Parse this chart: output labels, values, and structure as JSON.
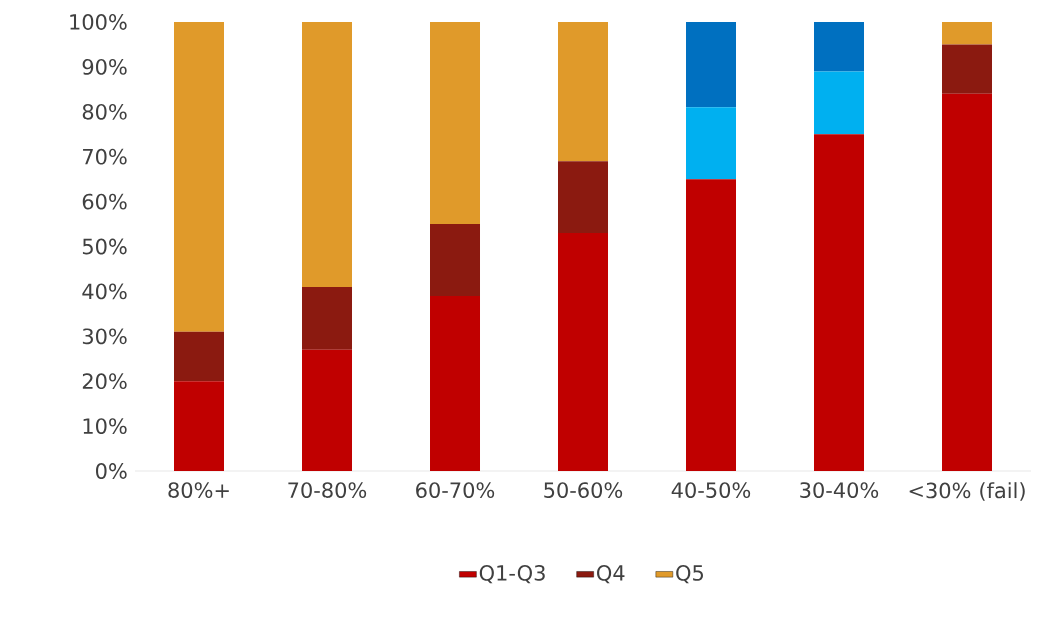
{
  "chart_data": {
    "type": "bar",
    "stacked": true,
    "categories": [
      "80%+",
      "70-80%",
      "60-70%",
      "50-60%",
      "40-50%",
      "30-40%",
      "<30% (fail)"
    ],
    "series": [
      {
        "name": "Q1-Q3",
        "color": "#c00000",
        "values": [
          20,
          27,
          39,
          53,
          65,
          75,
          84
        ]
      },
      {
        "name": "Q4",
        "color": "#8b1a10",
        "values": [
          11,
          14,
          16,
          16,
          0,
          0,
          11
        ]
      },
      {
        "name": "Q5",
        "color": "#e09a2a",
        "values": [
          69,
          59,
          45,
          31,
          0,
          0,
          5
        ]
      },
      {
        "color": "#00b0f0",
        "values": [
          0,
          0,
          0,
          0,
          16,
          14,
          0
        ]
      },
      {
        "color": "#0070c0",
        "values": [
          0,
          0,
          0,
          0,
          19,
          11,
          0
        ]
      }
    ],
    "ylim": [
      0,
      100
    ],
    "yticks": [
      {
        "value": 0,
        "label": "0%"
      },
      {
        "value": 10,
        "label": "10%"
      },
      {
        "value": 20,
        "label": "20%"
      },
      {
        "value": 30,
        "label": "30%"
      },
      {
        "value": 40,
        "label": "40%"
      },
      {
        "value": 50,
        "label": "50%"
      },
      {
        "value": 60,
        "label": "60%"
      },
      {
        "value": 70,
        "label": "70%"
      },
      {
        "value": 80,
        "label": "80%"
      },
      {
        "value": 90,
        "label": "90%"
      },
      {
        "value": 100,
        "label": "100%"
      }
    ],
    "legend": "bottom",
    "grid": false
  }
}
